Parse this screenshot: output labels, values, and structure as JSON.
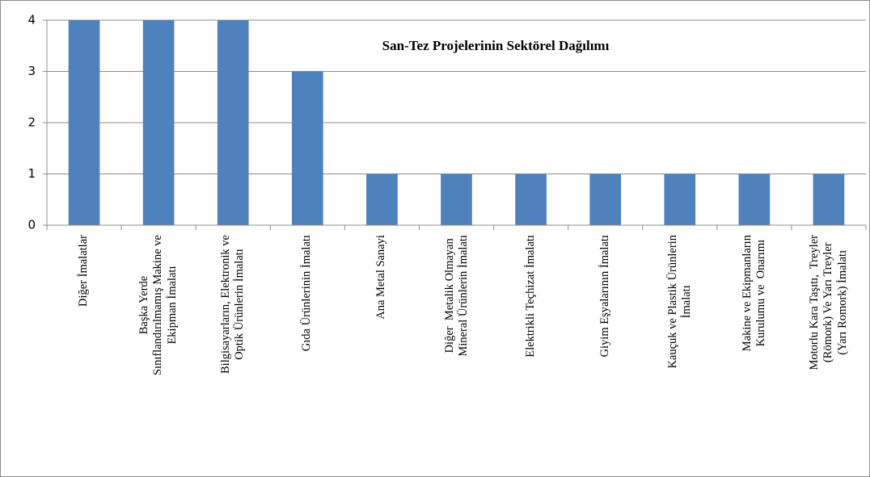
{
  "chart_data": {
    "type": "bar",
    "title": "San-Tez Projelerinin Sektörel Dağılımı",
    "categories": [
      "Diğer İmalatlar",
      "Başka Yerde\nSınıflandırılmamış Makine ve\nEkipman İmalatı",
      "Bilgisayarların, Elektronik ve\nOptik Ürünlerin İmalatı",
      "Gıda Ürünlerinin İmalatı",
      "Ana Metal Sanayi",
      "Diğer  Metalik Olmayan\nMineral Ürünlerin İmalatı",
      "Elektrikli Teçhizat İmalatı",
      "Giyim Eşyalarının İmalatı",
      "Kauçuk ve Plastik Ürünlerin\nİmalatı",
      "Makine ve Ekipmanların\nKurulumu ve  Onarımı",
      "Motorlu Kara Taşıtı,  Treyler\n(Römork) Ve Yarı Treyler\n(Yarı Romork) İmalatı"
    ],
    "values": [
      4,
      4,
      4,
      3,
      1,
      1,
      1,
      1,
      1,
      1,
      1
    ],
    "color": "#4f81bd",
    "ylim": [
      0,
      4
    ],
    "yticks": [
      0,
      1,
      2,
      3,
      4
    ],
    "grid": true
  }
}
